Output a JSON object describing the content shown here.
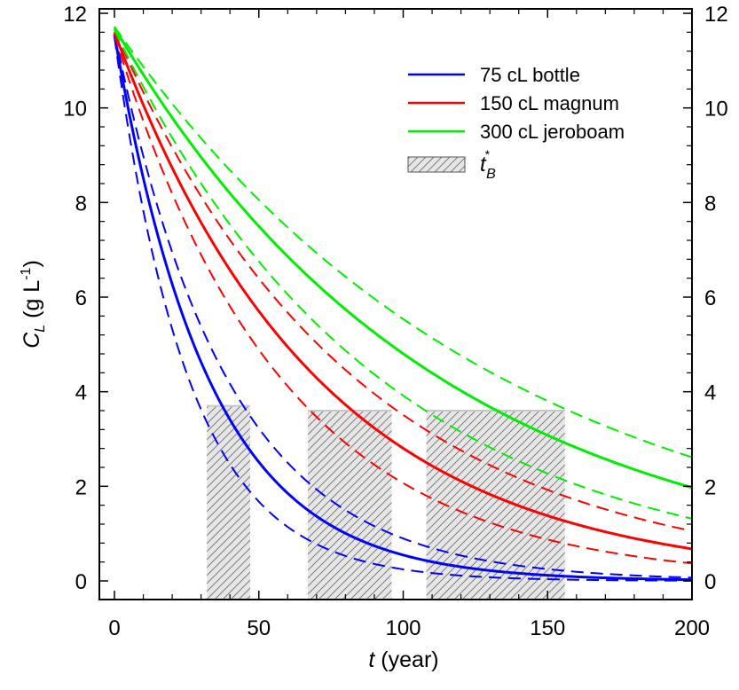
{
  "chart_data": {
    "type": "line",
    "title": "",
    "xlabel": "t (year)",
    "xlabel_italic_part": "t",
    "xlabel_rest": " (year)",
    "ylabel_main": "C",
    "ylabel_sub": "L",
    "ylabel_unit": " (g L",
    "ylabel_sup": "-1",
    "ylabel_close": ")",
    "xlim": [
      -5,
      200
    ],
    "ylim": [
      -0.3,
      12.2
    ],
    "x_ticks": [
      0,
      50,
      100,
      150,
      200
    ],
    "x_minor_ticks": [
      10,
      20,
      30,
      40,
      60,
      70,
      80,
      90,
      110,
      120,
      130,
      140,
      160,
      170,
      180,
      190
    ],
    "y_ticks": [
      0,
      2,
      4,
      6,
      8,
      10,
      12
    ],
    "y_minor_ticks": [
      0.4,
      0.8,
      1.2,
      1.6,
      2.4,
      2.8,
      3.2,
      3.6,
      4.4,
      4.8,
      5.2,
      5.6,
      6.4,
      6.8,
      7.2,
      7.6,
      8.4,
      8.8,
      9.2,
      9.6,
      10.4,
      10.8,
      11.2,
      11.6
    ],
    "right_axis_mirror": true,
    "grid": false,
    "legend_position": "top-right",
    "legend": [
      {
        "label": "75 cL bottle",
        "color": "#0000ff",
        "kind": "line"
      },
      {
        "label": "150 cL magnum",
        "color": "#ff0000",
        "kind": "line"
      },
      {
        "label": "300 cL jeroboam",
        "color": "#00ee00",
        "kind": "line"
      },
      {
        "label_main": "t",
        "label_sup": "*",
        "label_sub": "B",
        "color": "#d9d9d9",
        "kind": "hatched-box"
      }
    ],
    "series": [
      {
        "name": "75 cL bottle",
        "style": "solid",
        "color": "#0000ff",
        "model": "exponential",
        "c0": 11.55,
        "k": 0.0305
      },
      {
        "name": "75 cL bottle upper",
        "style": "dashed",
        "color": "#0000ff",
        "model": "exponential",
        "c0": 11.6,
        "k": 0.0256
      },
      {
        "name": "75 cL bottle lower",
        "style": "dashed",
        "color": "#0000ff",
        "model": "exponential",
        "c0": 11.5,
        "k": 0.0385
      },
      {
        "name": "150 cL magnum",
        "style": "solid",
        "color": "#ff0000",
        "model": "exponential",
        "c0": 11.6,
        "k": 0.0142
      },
      {
        "name": "150 cL magnum upper",
        "style": "dashed",
        "color": "#ff0000",
        "model": "exponential",
        "c0": 11.65,
        "k": 0.012
      },
      {
        "name": "150 cL magnum lower",
        "style": "dashed",
        "color": "#ff0000",
        "model": "exponential",
        "c0": 11.55,
        "k": 0.0172
      },
      {
        "name": "300 cL jeroboam",
        "style": "solid",
        "color": "#00ee00",
        "model": "exponential",
        "c0": 11.7,
        "k": 0.0089
      },
      {
        "name": "300 cL jeroboam upper",
        "style": "dashed",
        "color": "#00ee00",
        "model": "exponential",
        "c0": 11.72,
        "k": 0.0075
      },
      {
        "name": "300 cL jeroboam lower",
        "style": "dashed",
        "color": "#00ee00",
        "model": "exponential",
        "c0": 11.65,
        "k": 0.0109
      }
    ],
    "shaded_regions": [
      {
        "name": "t*B bottle",
        "x_start": 32,
        "x_end": 47,
        "y_top": 3.7
      },
      {
        "name": "t*B magnum",
        "x_start": 67,
        "x_end": 96,
        "y_top": 3.6
      },
      {
        "name": "t*B jeroboam",
        "x_start": 108,
        "x_end": 156,
        "y_top": 3.6
      }
    ]
  }
}
